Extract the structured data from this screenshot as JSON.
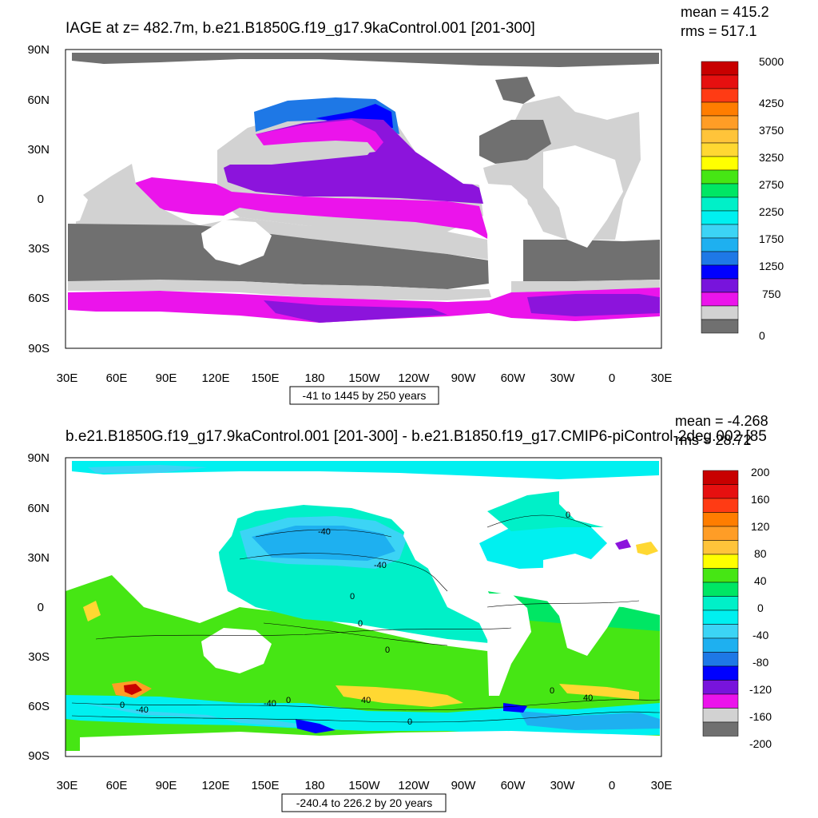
{
  "panels": [
    {
      "title": "IAGE at z= 482.7m, b.e21.B1850G.f19_g17.9kaControl.001 [201-300]",
      "mean": "mean = 415.2",
      "rms": "rms = 517.1",
      "y_ticks": [
        "90N",
        "60N",
        "30N",
        "0",
        "30S",
        "60S",
        "90S"
      ],
      "x_ticks": [
        "30E",
        "60E",
        "90E",
        "120E",
        "150E",
        "180",
        "150W",
        "120W",
        "90W",
        "60W",
        "30W",
        "0",
        "30E"
      ],
      "range": "-41 to 1445 by 250 years",
      "colorbar_labels": [
        "5000",
        "4250",
        "3750",
        "3250",
        "2750",
        "2250",
        "1750",
        "1250",
        "750",
        "0"
      ],
      "colorbar_colors": [
        "#c80000",
        "#e61010",
        "#ff3b14",
        "#ff7d00",
        "#ff9d26",
        "#ffc43a",
        "#ffd832",
        "#ffff00",
        "#46e614",
        "#00e664",
        "#00f0c8",
        "#00f0f0",
        "#3cd4f5",
        "#1eb0f0",
        "#1e78e6",
        "#0000ff",
        "#7814dc",
        "#eb14eb",
        "#d2d2d2",
        "#707070"
      ]
    },
    {
      "title": "b.e21.B1850G.f19_g17.9kaControl.001 [201-300] - b.e21.B1850.f19_g17.CMIP6-piControl-2deg.002 [85",
      "mean": "mean = -4.268",
      "rms": "rms = 28.72",
      "y_ticks": [
        "90N",
        "60N",
        "30N",
        "0",
        "30S",
        "60S",
        "90S"
      ],
      "x_ticks": [
        "30E",
        "60E",
        "90E",
        "120E",
        "150E",
        "180",
        "150W",
        "120W",
        "90W",
        "60W",
        "30W",
        "0",
        "30E"
      ],
      "range": "-240.4 to 226.2 by 20 years",
      "colorbar_labels": [
        "200",
        "160",
        "120",
        "80",
        "40",
        "0",
        "-40",
        "-80",
        "-120",
        "-160",
        "-200"
      ],
      "colorbar_colors": [
        "#c80000",
        "#e61010",
        "#ff3b14",
        "#ff7d00",
        "#ff9d26",
        "#ffc43a",
        "#ffff00",
        "#46e614",
        "#00e664",
        "#00f0c8",
        "#00f0f0",
        "#3cd4f5",
        "#1eb0f0",
        "#1e78e6",
        "#0000ff",
        "#7814dc",
        "#eb14eb",
        "#d2d2d2",
        "#707070"
      ],
      "contour_labels": [
        "-40",
        "-40",
        "0",
        "0",
        "0",
        "0",
        "0",
        "-40",
        "0",
        "40",
        "0",
        "-40",
        "40",
        "0"
      ]
    }
  ],
  "colors": {
    "land_dark": "#707070",
    "land_light": "#d2d2d2",
    "magenta": "#eb14eb",
    "purple": "#8c14dc",
    "blue": "#1e78e6",
    "deep_blue": "#0000ff",
    "cyan": "#00f0f0",
    "light_cyan": "#3cd4f5",
    "green": "#46e614",
    "yellow": "#ffd832",
    "orange": "#ff9d26"
  }
}
